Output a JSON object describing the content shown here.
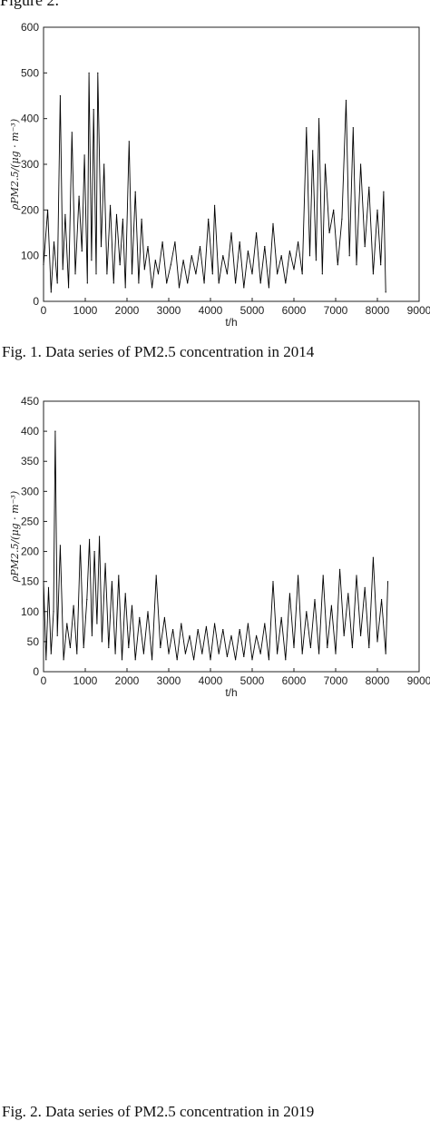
{
  "page": {
    "top_fragment": "Figure 2.",
    "captions": [
      "Fig. 1. Data series of PM2.5 concentration in 2014",
      "Fig. 2. Data series of PM2.5 concentration in 2019"
    ]
  },
  "chart_data": [
    {
      "type": "line",
      "title": "",
      "xlabel": "t/h",
      "ylabel": "ρPM2.5/(μg · m⁻³)",
      "xlim": [
        0,
        9000
      ],
      "ylim": [
        0,
        600
      ],
      "x_ticks": [
        0,
        1000,
        2000,
        3000,
        4000,
        5000,
        6000,
        7000,
        8000,
        9000
      ],
      "x_tick_labels": [
        "0",
        "1000",
        "2000",
        "3000",
        "4000",
        "5000",
        "6000",
        "7000",
        "8000",
        "9000"
      ],
      "y_ticks": [
        0,
        100,
        200,
        300,
        400,
        500,
        600
      ],
      "y_tick_labels": [
        "0",
        "100",
        "200",
        "300",
        "400",
        "500",
        "600"
      ],
      "grid": false,
      "series": [
        {
          "name": "",
          "x": [
            0,
            100,
            180,
            250,
            330,
            400,
            460,
            520,
            600,
            680,
            760,
            850,
            920,
            980,
            1050,
            1090,
            1150,
            1200,
            1260,
            1300,
            1380,
            1450,
            1520,
            1600,
            1680,
            1750,
            1830,
            1900,
            1960,
            2050,
            2120,
            2200,
            2280,
            2350,
            2420,
            2500,
            2600,
            2680,
            2750,
            2850,
            2950,
            3050,
            3150,
            3250,
            3350,
            3450,
            3550,
            3650,
            3750,
            3850,
            3950,
            4050,
            4100,
            4200,
            4300,
            4400,
            4500,
            4600,
            4700,
            4800,
            4900,
            5000,
            5100,
            5200,
            5300,
            5400,
            5500,
            5600,
            5700,
            5800,
            5900,
            6000,
            6100,
            6200,
            6300,
            6380,
            6450,
            6530,
            6600,
            6680,
            6750,
            6850,
            6950,
            7050,
            7150,
            7250,
            7330,
            7420,
            7500,
            7600,
            7700,
            7800,
            7900,
            8000,
            8080,
            8150,
            8200
          ],
          "y": [
            80,
            200,
            20,
            130,
            40,
            450,
            70,
            190,
            30,
            370,
            60,
            230,
            110,
            320,
            40,
            500,
            90,
            420,
            60,
            500,
            120,
            300,
            60,
            210,
            40,
            190,
            80,
            180,
            30,
            350,
            60,
            240,
            40,
            180,
            70,
            120,
            30,
            90,
            60,
            130,
            40,
            80,
            130,
            30,
            90,
            40,
            100,
            60,
            120,
            40,
            180,
            60,
            210,
            40,
            100,
            60,
            150,
            40,
            130,
            30,
            110,
            60,
            150,
            40,
            120,
            30,
            170,
            60,
            100,
            40,
            110,
            70,
            130,
            60,
            380,
            100,
            330,
            90,
            400,
            60,
            300,
            150,
            200,
            80,
            180,
            440,
            100,
            380,
            80,
            300,
            120,
            250,
            60,
            200,
            80,
            240,
            20
          ]
        }
      ]
    },
    {
      "type": "line",
      "title": "",
      "xlabel": "t/h",
      "ylabel": "ρPM2.5/(μg · m⁻³)",
      "xlim": [
        0,
        9000
      ],
      "ylim": [
        0,
        450
      ],
      "x_ticks": [
        0,
        1000,
        2000,
        3000,
        4000,
        5000,
        6000,
        7000,
        8000,
        9000
      ],
      "x_tick_labels": [
        "0",
        "1000",
        "2000",
        "3000",
        "4000",
        "5000",
        "6000",
        "7000",
        "8000",
        "9000"
      ],
      "y_ticks": [
        0,
        50,
        100,
        150,
        200,
        250,
        300,
        350,
        400,
        450
      ],
      "y_tick_labels": [
        "0",
        "50",
        "100",
        "150",
        "200",
        "250",
        "300",
        "350",
        "400",
        "450"
      ],
      "grid": false,
      "series": [
        {
          "name": "",
          "x": [
            0,
            60,
            120,
            180,
            240,
            280,
            330,
            400,
            480,
            560,
            640,
            720,
            800,
            880,
            960,
            1040,
            1100,
            1160,
            1220,
            1280,
            1340,
            1400,
            1480,
            1560,
            1640,
            1720,
            1800,
            1880,
            1960,
            2040,
            2120,
            2200,
            2300,
            2400,
            2500,
            2600,
            2700,
            2800,
            2900,
            3000,
            3100,
            3200,
            3300,
            3400,
            3500,
            3600,
            3700,
            3800,
            3900,
            4000,
            4100,
            4200,
            4300,
            4400,
            4500,
            4600,
            4700,
            4800,
            4900,
            5000,
            5100,
            5200,
            5300,
            5400,
            5500,
            5600,
            5700,
            5800,
            5900,
            6000,
            6100,
            6200,
            6300,
            6400,
            6500,
            6600,
            6700,
            6800,
            6900,
            7000,
            7100,
            7200,
            7300,
            7400,
            7500,
            7600,
            7700,
            7800,
            7900,
            8000,
            8100,
            8200,
            8250
          ],
          "y": [
            150,
            20,
            140,
            30,
            100,
            400,
            60,
            210,
            20,
            80,
            40,
            110,
            30,
            210,
            40,
            120,
            220,
            60,
            200,
            80,
            225,
            50,
            180,
            40,
            150,
            30,
            160,
            20,
            130,
            40,
            110,
            20,
            90,
            30,
            100,
            20,
            160,
            40,
            90,
            30,
            70,
            20,
            80,
            30,
            60,
            20,
            70,
            30,
            75,
            20,
            80,
            30,
            70,
            25,
            60,
            20,
            70,
            25,
            80,
            20,
            60,
            30,
            80,
            20,
            150,
            30,
            90,
            20,
            130,
            40,
            160,
            30,
            100,
            40,
            120,
            30,
            160,
            40,
            110,
            30,
            170,
            60,
            130,
            40,
            160,
            60,
            140,
            40,
            190,
            50,
            120,
            30,
            150
          ]
        }
      ]
    }
  ]
}
